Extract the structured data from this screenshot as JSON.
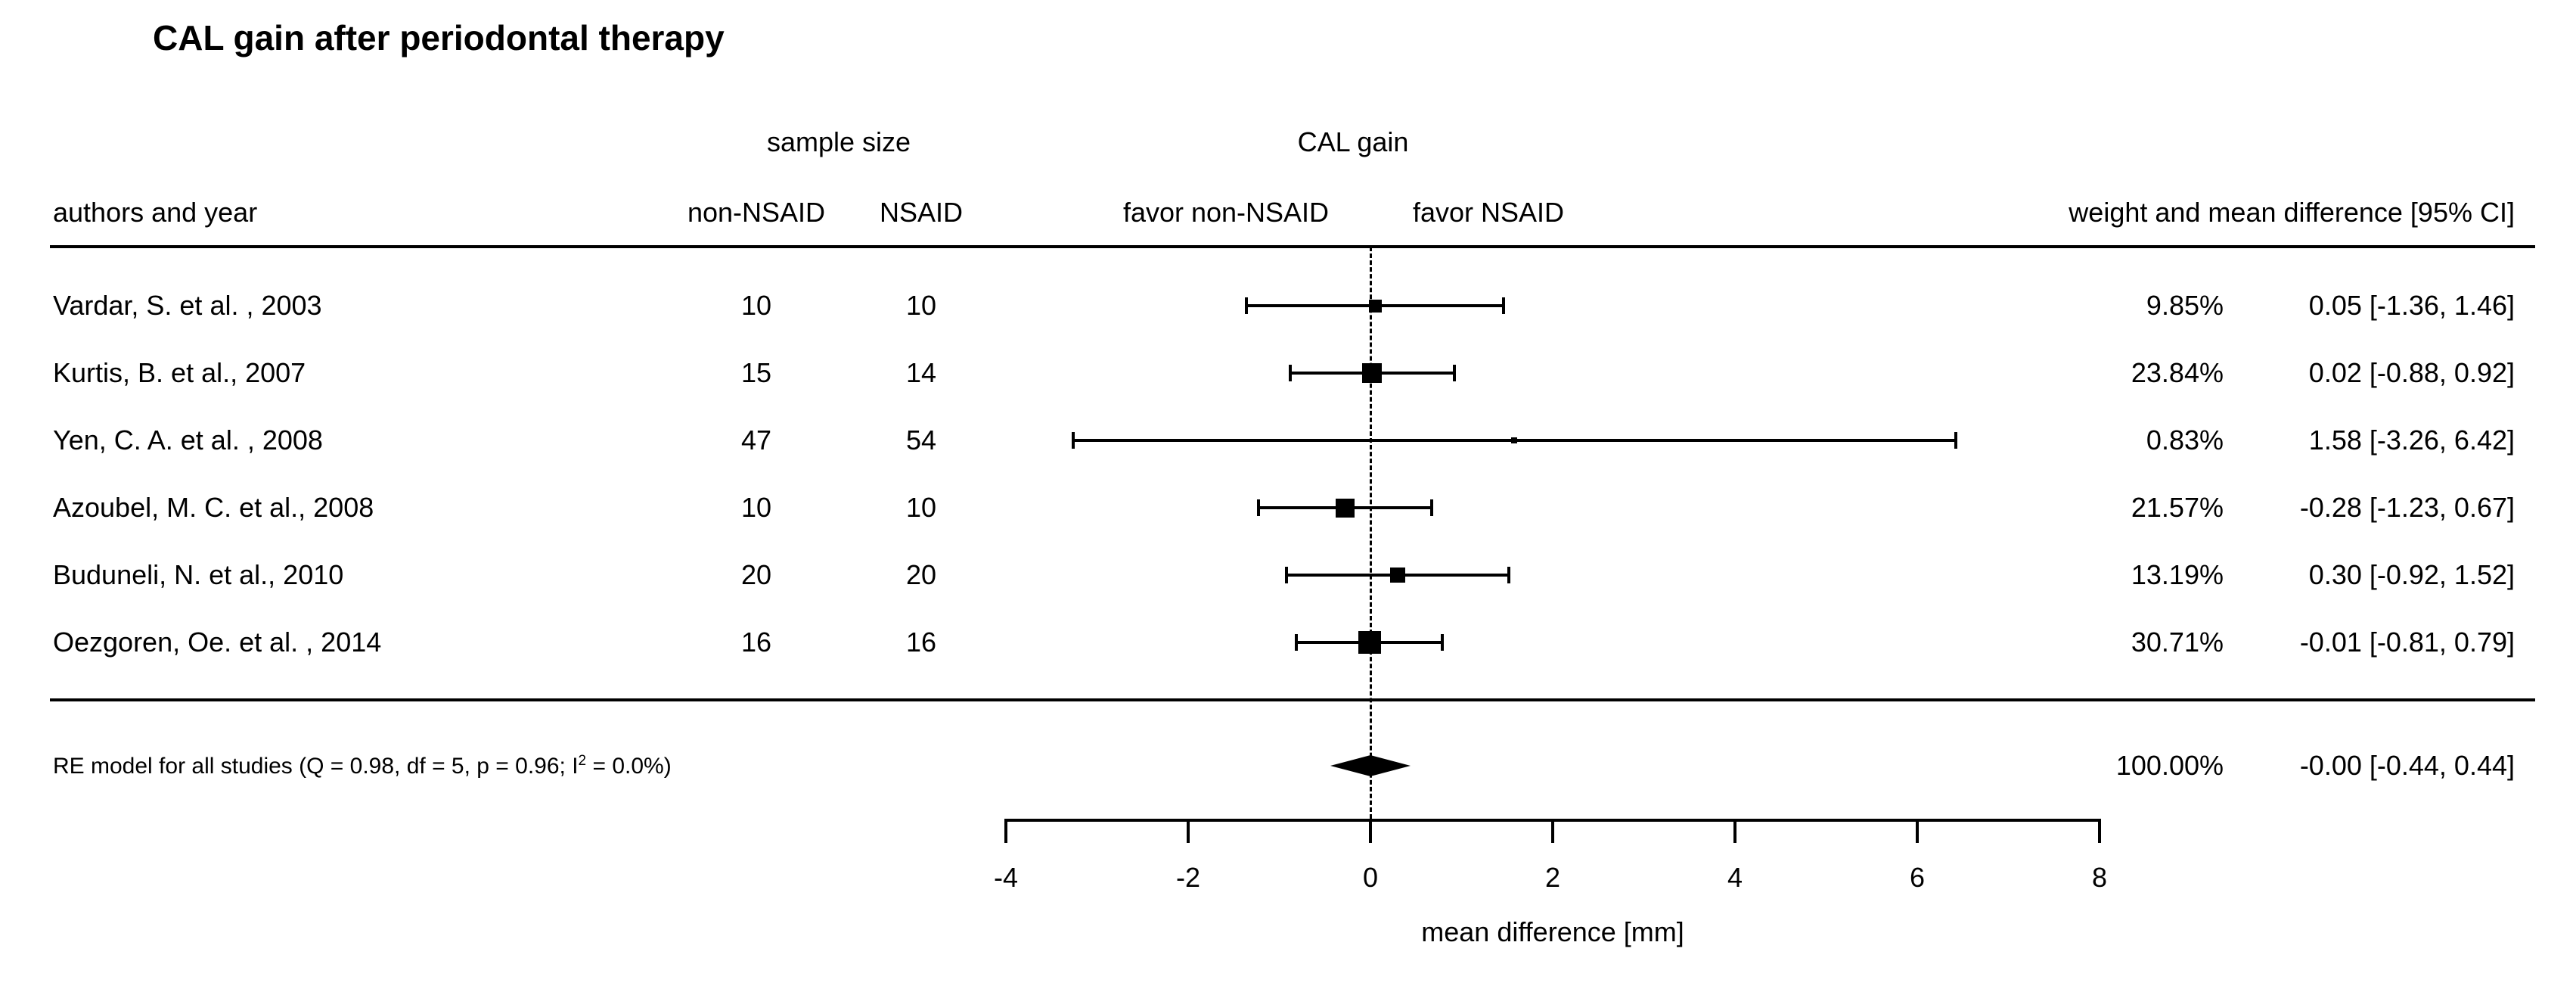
{
  "page": {
    "background": "#ffffff",
    "text_color": "#000000"
  },
  "chart_data": {
    "type": "forest",
    "title": "CAL gain after periodontal therapy",
    "group_headers": {
      "sample_size": "sample size",
      "effect": "CAL gain"
    },
    "column_headers": {
      "authors": "authors and year",
      "non_nsaid": "non-NSAID",
      "nsaid": "NSAID",
      "favor_left": "favor non-NSAID",
      "favor_right": "favor NSAID",
      "annotation": "weight and mean difference [95% CI]"
    },
    "xlabel": "mean difference [mm]",
    "xlim": [
      -4,
      8
    ],
    "xticks": [
      -4,
      -2,
      0,
      2,
      4,
      6,
      8
    ],
    "reference_value": 0,
    "legend_position": "none",
    "grid": false,
    "studies": [
      {
        "author": "Vardar, S. et al. , 2003",
        "n_non_nsaid": "10",
        "n_nsaid": "10",
        "weight_pct": 9.85,
        "weight_label": "9.85%",
        "estimate": 0.05,
        "ci_low": -1.36,
        "ci_high": 1.46,
        "annotation": "0.05 [-1.36, 1.46]"
      },
      {
        "author": "Kurtis, B. et al., 2007",
        "n_non_nsaid": "15",
        "n_nsaid": "14",
        "weight_pct": 23.84,
        "weight_label": "23.84%",
        "estimate": 0.02,
        "ci_low": -0.88,
        "ci_high": 0.92,
        "annotation": "0.02 [-0.88, 0.92]"
      },
      {
        "author": "Yen, C. A. et al. , 2008",
        "n_non_nsaid": "47",
        "n_nsaid": "54",
        "weight_pct": 0.83,
        "weight_label": "0.83%",
        "estimate": 1.58,
        "ci_low": -3.26,
        "ci_high": 6.42,
        "annotation": "1.58 [-3.26, 6.42]"
      },
      {
        "author": "Azoubel, M. C. et al., 2008",
        "n_non_nsaid": "10",
        "n_nsaid": "10",
        "weight_pct": 21.57,
        "weight_label": "21.57%",
        "estimate": -0.28,
        "ci_low": -1.23,
        "ci_high": 0.67,
        "annotation": "-0.28 [-1.23, 0.67]"
      },
      {
        "author": "Buduneli, N. et al., 2010",
        "n_non_nsaid": "20",
        "n_nsaid": "20",
        "weight_pct": 13.19,
        "weight_label": "13.19%",
        "estimate": 0.3,
        "ci_low": -0.92,
        "ci_high": 1.52,
        "annotation": "0.30 [-0.92, 1.52]"
      },
      {
        "author": "Oezgoren, Oe. et al. , 2014",
        "n_non_nsaid": "16",
        "n_nsaid": "16",
        "weight_pct": 30.71,
        "weight_label": "30.71%",
        "estimate": -0.01,
        "ci_low": -0.81,
        "ci_high": 0.79,
        "annotation": "-0.01 [-0.81, 0.79]"
      }
    ],
    "summary": {
      "label_prefix": "RE model for all studies (Q = 0.98, df = 5, p = 0.96; I",
      "label_sup": "2",
      "label_suffix": " = 0.0%)",
      "weight_label": "100.00%",
      "estimate": -0.0,
      "ci_low": -0.44,
      "ci_high": 0.44,
      "annotation": "-0.00 [-0.44, 0.44]"
    }
  }
}
